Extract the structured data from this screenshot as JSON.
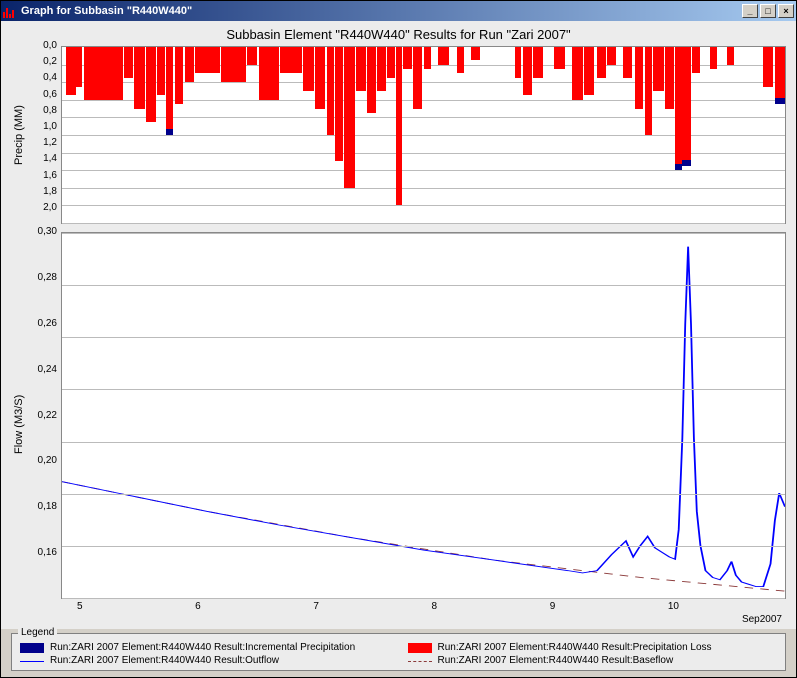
{
  "window": {
    "title": "Graph for Subbasin \"R440W440\""
  },
  "chart": {
    "title": "Subbasin Element \"R440W440\" Results for Run \"Zari 2007\"",
    "xaxis": {
      "ticks": [
        "5",
        "6",
        "7",
        "8",
        "9",
        "10"
      ],
      "label": "Sep2007"
    }
  },
  "precip_chart": {
    "type": "bar",
    "ylabel": "Precip (MM)",
    "ylim": [
      0,
      2.0
    ],
    "yticks": [
      "0,0",
      "0,2",
      "0,4",
      "0,6",
      "0,8",
      "1,0",
      "1,2",
      "1,4",
      "1,6",
      "1,8",
      "2,0"
    ],
    "background_color": "#ffffff",
    "grid_color": "#bbbbbb",
    "bar_color": "#ff0000",
    "tip_color": "#00008b",
    "bars": [
      {
        "x": 0.5,
        "w": 1.4,
        "h": 0.55
      },
      {
        "x": 2,
        "w": 0.8,
        "h": 0.45
      },
      {
        "x": 3,
        "w": 5.5,
        "h": 0.6
      },
      {
        "x": 8.6,
        "w": 1.2,
        "h": 0.35
      },
      {
        "x": 10,
        "w": 1.5,
        "h": 0.7
      },
      {
        "x": 11.6,
        "w": 1.4,
        "h": 0.85
      },
      {
        "x": 13.2,
        "w": 1.0,
        "h": 0.55
      },
      {
        "x": 14.4,
        "w": 1.0,
        "h": 1.0,
        "tip": true
      },
      {
        "x": 15.6,
        "w": 1.2,
        "h": 0.65
      },
      {
        "x": 17,
        "w": 1.2,
        "h": 0.4
      },
      {
        "x": 18.4,
        "w": 3.5,
        "h": 0.3
      },
      {
        "x": 22,
        "w": 3.5,
        "h": 0.4
      },
      {
        "x": 25.6,
        "w": 1.4,
        "h": 0.2
      },
      {
        "x": 27.2,
        "w": 2.8,
        "h": 0.6
      },
      {
        "x": 30.2,
        "w": 3,
        "h": 0.3
      },
      {
        "x": 33.4,
        "w": 1.4,
        "h": 0.5
      },
      {
        "x": 35,
        "w": 1.4,
        "h": 0.7
      },
      {
        "x": 36.6,
        "w": 1.0,
        "h": 1.0
      },
      {
        "x": 37.8,
        "w": 1.0,
        "h": 1.3
      },
      {
        "x": 39,
        "w": 1.5,
        "h": 1.6
      },
      {
        "x": 40.6,
        "w": 1.4,
        "h": 0.5
      },
      {
        "x": 42.2,
        "w": 1.2,
        "h": 0.75
      },
      {
        "x": 43.6,
        "w": 1.2,
        "h": 0.5
      },
      {
        "x": 45,
        "w": 1.0,
        "h": 0.35
      },
      {
        "x": 46.2,
        "w": 0.8,
        "h": 1.8
      },
      {
        "x": 47.2,
        "w": 1.2,
        "h": 0.25
      },
      {
        "x": 48.6,
        "w": 1.2,
        "h": 0.7
      },
      {
        "x": 50,
        "w": 1.0,
        "h": 0.25
      },
      {
        "x": 52,
        "w": 1.5,
        "h": 0.2
      },
      {
        "x": 54.6,
        "w": 1.0,
        "h": 0.3
      },
      {
        "x": 56.6,
        "w": 1.2,
        "h": 0.15
      },
      {
        "x": 62.6,
        "w": 0.9,
        "h": 0.35
      },
      {
        "x": 63.7,
        "w": 1.3,
        "h": 0.55
      },
      {
        "x": 65.2,
        "w": 1.3,
        "h": 0.35
      },
      {
        "x": 68,
        "w": 1.6,
        "h": 0.25
      },
      {
        "x": 70.6,
        "w": 1.4,
        "h": 0.6
      },
      {
        "x": 72.2,
        "w": 1.4,
        "h": 0.55
      },
      {
        "x": 74,
        "w": 1.2,
        "h": 0.35
      },
      {
        "x": 75.4,
        "w": 1.2,
        "h": 0.2
      },
      {
        "x": 77.6,
        "w": 1.2,
        "h": 0.35
      },
      {
        "x": 79.2,
        "w": 1.2,
        "h": 0.7
      },
      {
        "x": 80.6,
        "w": 1.0,
        "h": 1.0
      },
      {
        "x": 81.8,
        "w": 1.4,
        "h": 0.5
      },
      {
        "x": 83.4,
        "w": 1.2,
        "h": 0.7
      },
      {
        "x": 84.8,
        "w": 1.0,
        "h": 1.4,
        "tip": true
      },
      {
        "x": 85.8,
        "w": 1.2,
        "h": 1.35,
        "tip": true
      },
      {
        "x": 87.2,
        "w": 1.0,
        "h": 0.3
      },
      {
        "x": 89.6,
        "w": 1.0,
        "h": 0.25
      },
      {
        "x": 92,
        "w": 1.0,
        "h": 0.2
      },
      {
        "x": 97,
        "w": 1.4,
        "h": 0.45
      },
      {
        "x": 98.6,
        "w": 1.4,
        "h": 0.65,
        "tip": true
      }
    ]
  },
  "flow_chart": {
    "type": "line",
    "ylabel": "Flow (M3/S)",
    "ylim": [
      0.14,
      0.3
    ],
    "yticks": [
      "0,30",
      "0,28",
      "0,26",
      "0,24",
      "0,22",
      "0,20",
      "0,18",
      "0,16"
    ],
    "background_color": "#ffffff",
    "grid_color": "#bbbbbb",
    "outflow_color": "#0000ff",
    "baseflow_color": "#8b3a3a",
    "outflow": [
      [
        0,
        0.191
      ],
      [
        10,
        0.1845
      ],
      [
        20,
        0.178
      ],
      [
        30,
        0.172
      ],
      [
        40,
        0.1665
      ],
      [
        50,
        0.161
      ],
      [
        60,
        0.1565
      ],
      [
        70,
        0.152
      ],
      [
        72,
        0.151
      ],
      [
        74,
        0.152
      ],
      [
        76,
        0.159
      ],
      [
        78,
        0.165
      ],
      [
        79,
        0.158
      ],
      [
        80,
        0.163
      ],
      [
        81,
        0.167
      ],
      [
        82,
        0.162
      ],
      [
        83,
        0.16
      ],
      [
        84,
        0.158
      ],
      [
        84.8,
        0.157
      ],
      [
        85.3,
        0.17
      ],
      [
        85.8,
        0.21
      ],
      [
        86.2,
        0.26
      ],
      [
        86.6,
        0.294
      ],
      [
        87.0,
        0.26
      ],
      [
        87.4,
        0.21
      ],
      [
        87.8,
        0.178
      ],
      [
        88.3,
        0.163
      ],
      [
        89,
        0.152
      ],
      [
        90,
        0.149
      ],
      [
        91,
        0.148
      ],
      [
        92,
        0.152
      ],
      [
        92.6,
        0.156
      ],
      [
        93.2,
        0.15
      ],
      [
        94,
        0.147
      ],
      [
        95,
        0.146
      ],
      [
        96,
        0.145
      ],
      [
        97,
        0.145
      ],
      [
        98,
        0.155
      ],
      [
        98.6,
        0.174
      ],
      [
        99.2,
        0.186
      ],
      [
        100,
        0.18
      ]
    ],
    "baseflow": [
      [
        0,
        0.191
      ],
      [
        20,
        0.178
      ],
      [
        40,
        0.1665
      ],
      [
        60,
        0.1565
      ],
      [
        80,
        0.149
      ],
      [
        100,
        0.143
      ]
    ]
  },
  "legend": {
    "title": "Legend",
    "items": [
      {
        "type": "swatch",
        "color": "#00008b",
        "text": "Run:ZARI 2007 Element:R440W440 Result:Incremental Precipitation"
      },
      {
        "type": "swatch",
        "color": "#ff0000",
        "text": "Run:ZARI 2007 Element:R440W440 Result:Precipitation Loss"
      },
      {
        "type": "line",
        "color": "#0000ff",
        "text": "Run:ZARI 2007 Element:R440W440 Result:Outflow"
      },
      {
        "type": "dashed",
        "color": "#8b3a3a",
        "text": "Run:ZARI 2007 Element:R440W440 Result:Baseflow"
      }
    ]
  }
}
